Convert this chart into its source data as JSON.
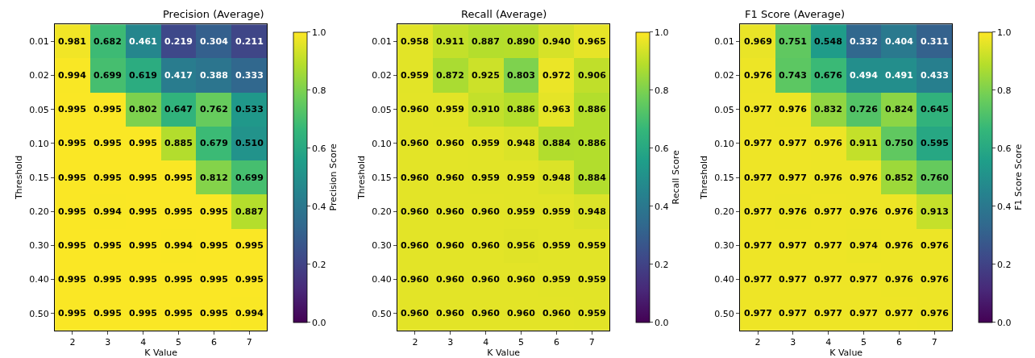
{
  "chart_data": [
    {
      "type": "heatmap",
      "title": "Precision (Average)",
      "xlabel": "K Value",
      "ylabel": "Threshold",
      "clabel": "Precision Score",
      "categories": [
        "2",
        "3",
        "4",
        "5",
        "6",
        "7"
      ],
      "y_categories": [
        "0.01",
        "0.02",
        "0.05",
        "0.10",
        "0.15",
        "0.20",
        "0.30",
        "0.40",
        "0.50"
      ],
      "cells": [
        [
          0.981,
          0.682,
          0.461,
          0.219,
          0.304,
          0.211
        ],
        [
          0.994,
          0.699,
          0.619,
          0.417,
          0.388,
          0.333
        ],
        [
          0.995,
          0.995,
          0.802,
          0.647,
          0.762,
          0.533
        ],
        [
          0.995,
          0.995,
          0.995,
          0.885,
          0.679,
          0.51
        ],
        [
          0.995,
          0.995,
          0.995,
          0.995,
          0.812,
          0.699
        ],
        [
          0.995,
          0.994,
          0.995,
          0.995,
          0.995,
          0.887
        ],
        [
          0.995,
          0.995,
          0.995,
          0.994,
          0.995,
          0.995
        ],
        [
          0.995,
          0.995,
          0.995,
          0.995,
          0.995,
          0.995
        ],
        [
          0.995,
          0.995,
          0.995,
          0.995,
          0.995,
          0.994
        ]
      ],
      "cell_labels": [
        [
          "0.981",
          "0.682",
          "0.461",
          "0.219",
          "0.304",
          "0.211"
        ],
        [
          "0.994",
          "0.699",
          "0.619",
          "0.417",
          "0.388",
          "0.333"
        ],
        [
          "0.995",
          "0.995",
          "0.802",
          "0.647",
          "0.762",
          "0.533"
        ],
        [
          "0.995",
          "0.995",
          "0.995",
          "0.885",
          "0.679",
          "0.510"
        ],
        [
          "0.995",
          "0.995",
          "0.995",
          "0.995",
          "0.812",
          "0.699"
        ],
        [
          "0.995",
          "0.994",
          "0.995",
          "0.995",
          "0.995",
          "0.887"
        ],
        [
          "0.995",
          "0.995",
          "0.995",
          "0.994",
          "0.995",
          "0.995"
        ],
        [
          "0.995",
          "0.995",
          "0.995",
          "0.995",
          "0.995",
          "0.995"
        ],
        [
          "0.995",
          "0.995",
          "0.995",
          "0.995",
          "0.995",
          "0.994"
        ]
      ],
      "clim": [
        0,
        1
      ],
      "cticks": [
        {
          "value": 0,
          "label": "0.0"
        },
        {
          "value": 0.2,
          "label": "0.2"
        },
        {
          "value": 0.4,
          "label": "0.4"
        },
        {
          "value": 0.6,
          "label": "0.6"
        },
        {
          "value": 0.8,
          "label": "0.8"
        },
        {
          "value": 1,
          "label": "1.0"
        }
      ]
    },
    {
      "type": "heatmap",
      "title": "Recall (Average)",
      "xlabel": "K Value",
      "ylabel": "Threshold",
      "clabel": "Recall Score",
      "categories": [
        "2",
        "3",
        "4",
        "5",
        "6",
        "7"
      ],
      "y_categories": [
        "0.01",
        "0.02",
        "0.05",
        "0.10",
        "0.15",
        "0.20",
        "0.30",
        "0.40",
        "0.50"
      ],
      "cells": [
        [
          0.958,
          0.911,
          0.887,
          0.89,
          0.94,
          0.965
        ],
        [
          0.959,
          0.872,
          0.925,
          0.803,
          0.972,
          0.906
        ],
        [
          0.96,
          0.959,
          0.91,
          0.886,
          0.963,
          0.886
        ],
        [
          0.96,
          0.96,
          0.959,
          0.948,
          0.884,
          0.886
        ],
        [
          0.96,
          0.96,
          0.959,
          0.959,
          0.948,
          0.884
        ],
        [
          0.96,
          0.96,
          0.96,
          0.959,
          0.959,
          0.948
        ],
        [
          0.96,
          0.96,
          0.96,
          0.956,
          0.959,
          0.959
        ],
        [
          0.96,
          0.96,
          0.96,
          0.96,
          0.959,
          0.959
        ],
        [
          0.96,
          0.96,
          0.96,
          0.96,
          0.96,
          0.959
        ]
      ],
      "cell_labels": [
        [
          "0.958",
          "0.911",
          "0.887",
          "0.890",
          "0.940",
          "0.965"
        ],
        [
          "0.959",
          "0.872",
          "0.925",
          "0.803",
          "0.972",
          "0.906"
        ],
        [
          "0.960",
          "0.959",
          "0.910",
          "0.886",
          "0.963",
          "0.886"
        ],
        [
          "0.960",
          "0.960",
          "0.959",
          "0.948",
          "0.884",
          "0.886"
        ],
        [
          "0.960",
          "0.960",
          "0.959",
          "0.959",
          "0.948",
          "0.884"
        ],
        [
          "0.960",
          "0.960",
          "0.960",
          "0.959",
          "0.959",
          "0.948"
        ],
        [
          "0.960",
          "0.960",
          "0.960",
          "0.956",
          "0.959",
          "0.959"
        ],
        [
          "0.960",
          "0.960",
          "0.960",
          "0.960",
          "0.959",
          "0.959"
        ],
        [
          "0.960",
          "0.960",
          "0.960",
          "0.960",
          "0.960",
          "0.959"
        ]
      ],
      "clim": [
        0,
        1
      ],
      "cticks": [
        {
          "value": 0,
          "label": "0.0"
        },
        {
          "value": 0.2,
          "label": "0.2"
        },
        {
          "value": 0.4,
          "label": "0.4"
        },
        {
          "value": 0.6,
          "label": "0.6"
        },
        {
          "value": 0.8,
          "label": "0.8"
        },
        {
          "value": 1,
          "label": "1.0"
        }
      ]
    },
    {
      "type": "heatmap",
      "title": "F1 Score (Average)",
      "xlabel": "K Value",
      "ylabel": "Threshold",
      "clabel": "F1 Score Score",
      "categories": [
        "2",
        "3",
        "4",
        "5",
        "6",
        "7"
      ],
      "y_categories": [
        "0.01",
        "0.02",
        "0.05",
        "0.10",
        "0.15",
        "0.20",
        "0.30",
        "0.40",
        "0.50"
      ],
      "cells": [
        [
          0.969,
          0.751,
          0.548,
          0.332,
          0.404,
          0.311
        ],
        [
          0.976,
          0.743,
          0.676,
          0.494,
          0.491,
          0.433
        ],
        [
          0.977,
          0.976,
          0.832,
          0.726,
          0.824,
          0.645
        ],
        [
          0.977,
          0.977,
          0.976,
          0.911,
          0.75,
          0.595
        ],
        [
          0.977,
          0.977,
          0.976,
          0.976,
          0.852,
          0.76
        ],
        [
          0.977,
          0.976,
          0.977,
          0.976,
          0.976,
          0.913
        ],
        [
          0.977,
          0.977,
          0.977,
          0.974,
          0.976,
          0.976
        ],
        [
          0.977,
          0.977,
          0.977,
          0.977,
          0.976,
          0.976
        ],
        [
          0.977,
          0.977,
          0.977,
          0.977,
          0.977,
          0.976
        ]
      ],
      "cell_labels": [
        [
          "0.969",
          "0.751",
          "0.548",
          "0.332",
          "0.404",
          "0.311"
        ],
        [
          "0.976",
          "0.743",
          "0.676",
          "0.494",
          "0.491",
          "0.433"
        ],
        [
          "0.977",
          "0.976",
          "0.832",
          "0.726",
          "0.824",
          "0.645"
        ],
        [
          "0.977",
          "0.977",
          "0.976",
          "0.911",
          "0.750",
          "0.595"
        ],
        [
          "0.977",
          "0.977",
          "0.976",
          "0.976",
          "0.852",
          "0.760"
        ],
        [
          "0.977",
          "0.976",
          "0.977",
          "0.976",
          "0.976",
          "0.913"
        ],
        [
          "0.977",
          "0.977",
          "0.977",
          "0.974",
          "0.976",
          "0.976"
        ],
        [
          "0.977",
          "0.977",
          "0.977",
          "0.977",
          "0.976",
          "0.976"
        ],
        [
          "0.977",
          "0.977",
          "0.977",
          "0.977",
          "0.977",
          "0.976"
        ]
      ],
      "clim": [
        0,
        1
      ],
      "cticks": [
        {
          "value": 0,
          "label": "0.0"
        },
        {
          "value": 0.2,
          "label": "0.2"
        },
        {
          "value": 0.4,
          "label": "0.4"
        },
        {
          "value": 0.6,
          "label": "0.6"
        },
        {
          "value": 0.8,
          "label": "0.8"
        },
        {
          "value": 1,
          "label": "1.0"
        }
      ]
    }
  ]
}
